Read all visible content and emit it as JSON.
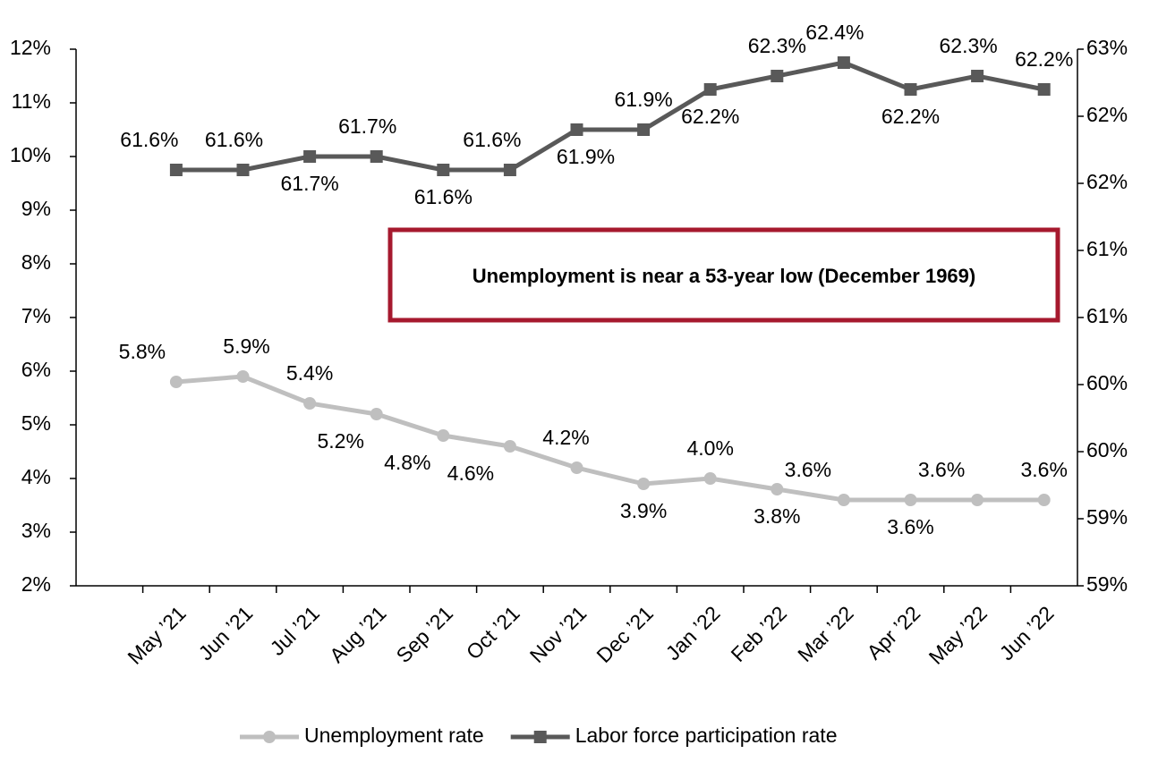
{
  "chart_data": {
    "type": "line",
    "categories": [
      null,
      "May ’21",
      "Jun ’21",
      "Jul ’21",
      "Aug ’21",
      "Sep ’21",
      "Oct ’21",
      "Nov ’21",
      "Dec ’21",
      "Jan ’22",
      "Feb ’22",
      "Mar ’22",
      "Apr ’22",
      "May ’22",
      "Jun ’22"
    ],
    "series": [
      {
        "name": "Unemployment rate",
        "color": "#bfbfbf",
        "marker": "circle",
        "values": [
          null,
          5.8,
          5.9,
          5.4,
          5.2,
          4.8,
          4.6,
          4.2,
          3.9,
          4.0,
          3.8,
          3.6,
          3.6,
          3.6,
          3.6
        ],
        "value_labels": [
          null,
          "5.8%",
          "5.9%",
          "5.4%",
          "5.2%",
          "4.8%",
          "4.6%",
          "4.2%",
          "3.9%",
          "4.0%",
          "3.8%",
          "3.6%",
          "3.6%",
          "3.6%",
          "3.6%"
        ]
      },
      {
        "name": "Labor force participation rate",
        "color": "#595959",
        "marker": "square",
        "axis": "y2",
        "values": [
          null,
          61.6,
          61.6,
          61.7,
          61.7,
          61.6,
          61.6,
          61.9,
          61.9,
          62.2,
          62.3,
          62.4,
          62.2,
          62.3,
          62.2
        ],
        "value_labels": [
          null,
          "61.6%",
          "61.6%",
          "61.7%",
          "61.7%",
          "61.6%",
          "61.6%",
          "61.9%",
          "61.9%",
          "62.2%",
          "62.3%",
          "62.4%",
          "62.2%",
          "62.3%",
          "62.2%"
        ]
      }
    ],
    "ylim": [
      2,
      12
    ],
    "yticks": [
      {
        "value": 2,
        "label": "2%"
      },
      {
        "value": 3,
        "label": "3%"
      },
      {
        "value": 4,
        "label": "4%"
      },
      {
        "value": 5,
        "label": "5%"
      },
      {
        "value": 6,
        "label": "6%"
      },
      {
        "value": 7,
        "label": "7%"
      },
      {
        "value": 8,
        "label": "8%"
      },
      {
        "value": 9,
        "label": "9%"
      },
      {
        "value": 10,
        "label": "10%"
      },
      {
        "value": 11,
        "label": "11%"
      },
      {
        "value": 12,
        "label": "12%"
      }
    ],
    "y2lim": [
      58.5,
      62.5
    ],
    "y2ticks": [
      {
        "value": 58.5,
        "label": "59%"
      },
      {
        "value": 59,
        "label": "59%"
      },
      {
        "value": 59.5,
        "label": "60%"
      },
      {
        "value": 60,
        "label": "60%"
      },
      {
        "value": 60.5,
        "label": "61%"
      },
      {
        "value": 61,
        "label": "61%"
      },
      {
        "value": 61.5,
        "label": "62%"
      },
      {
        "value": 62,
        "label": "62%"
      },
      {
        "value": 62.5,
        "label": "63%"
      }
    ],
    "annotation": "Unemployment is near a 53-year low (December 1969)",
    "annotation_color": "#a6192e",
    "legend": "bottom"
  }
}
